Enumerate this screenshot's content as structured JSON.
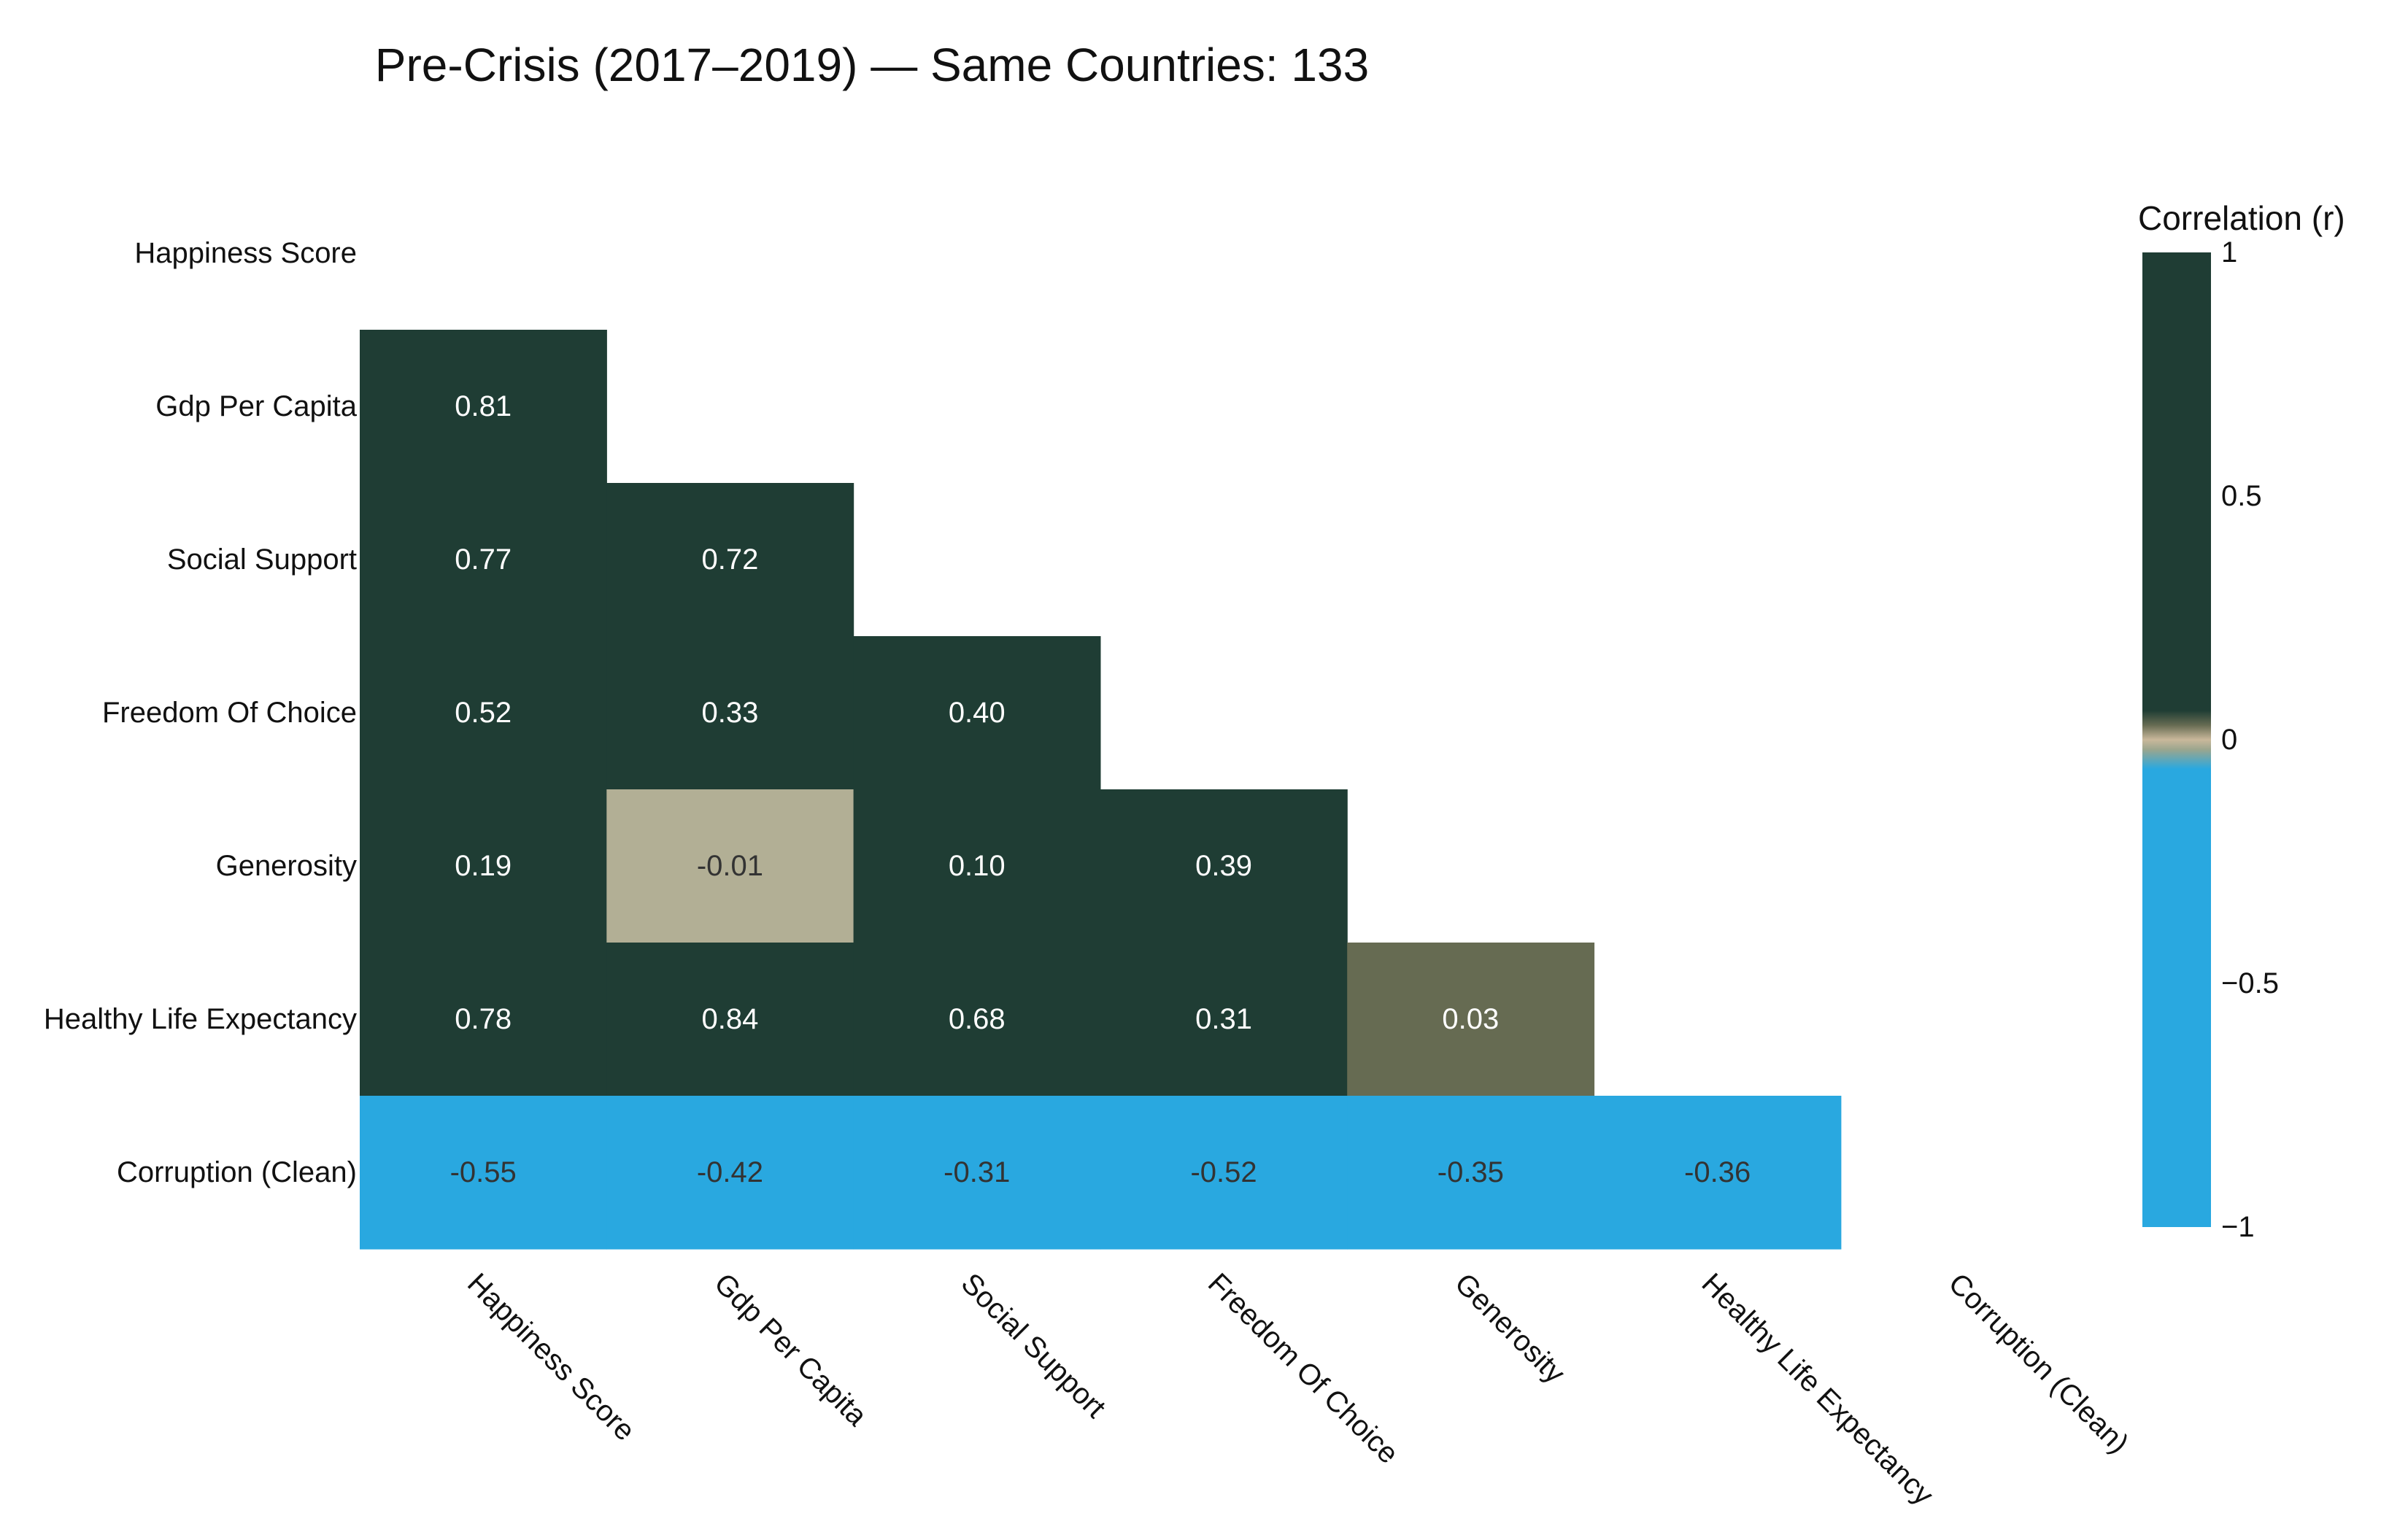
{
  "chart_data": {
    "type": "heatmap",
    "title": "Pre-Crisis (2017–2019) — Same Countries: 133",
    "variables": [
      "Happiness Score",
      "Gdp Per Capita",
      "Social Support",
      "Freedom Of Choice",
      "Generosity",
      "Healthy Life Expectancy",
      "Corruption (Clean)"
    ],
    "matrix": [
      [
        null,
        null,
        null,
        null,
        null,
        null,
        null
      ],
      [
        0.81,
        null,
        null,
        null,
        null,
        null,
        null
      ],
      [
        0.77,
        0.72,
        null,
        null,
        null,
        null,
        null
      ],
      [
        0.52,
        0.33,
        0.4,
        null,
        null,
        null,
        null
      ],
      [
        0.19,
        -0.01,
        0.1,
        0.39,
        null,
        null,
        null
      ],
      [
        0.78,
        0.84,
        0.68,
        0.31,
        0.03,
        null,
        null
      ],
      [
        -0.55,
        -0.42,
        -0.31,
        -0.52,
        -0.35,
        -0.36,
        null
      ]
    ],
    "value_labels": [
      [],
      [
        "0.81"
      ],
      [
        "0.77",
        "0.72"
      ],
      [
        "0.52",
        "0.33",
        "0.40"
      ],
      [
        "0.19",
        "-0.01",
        "0.10",
        "0.39"
      ],
      [
        "0.78",
        "0.84",
        "0.68",
        "0.31",
        "0.03"
      ],
      [
        "-0.55",
        "-0.42",
        "-0.31",
        "-0.52",
        "-0.35",
        "-0.36"
      ]
    ],
    "colorscale": [
      [
        -1.0,
        "#29A8E0"
      ],
      [
        -0.06,
        "#29A8E0"
      ],
      [
        -0.02,
        "#9BA68E"
      ],
      [
        0.0,
        "#C9B89B"
      ],
      [
        0.03,
        "#666B52"
      ],
      [
        0.06,
        "#1F3D34"
      ],
      [
        1.0,
        "#1F3D34"
      ]
    ],
    "colorbar": {
      "title": "Correlation (r)",
      "range": [
        -1,
        1
      ],
      "ticks": [
        1,
        0.5,
        0,
        -0.5,
        -1
      ],
      "tick_labels": [
        "1",
        "0.5",
        "0",
        "−0.5",
        "−1"
      ]
    },
    "text_colors": {
      "light": "#ffffff",
      "dark": "#333333"
    },
    "legend": "right",
    "grid": false
  }
}
